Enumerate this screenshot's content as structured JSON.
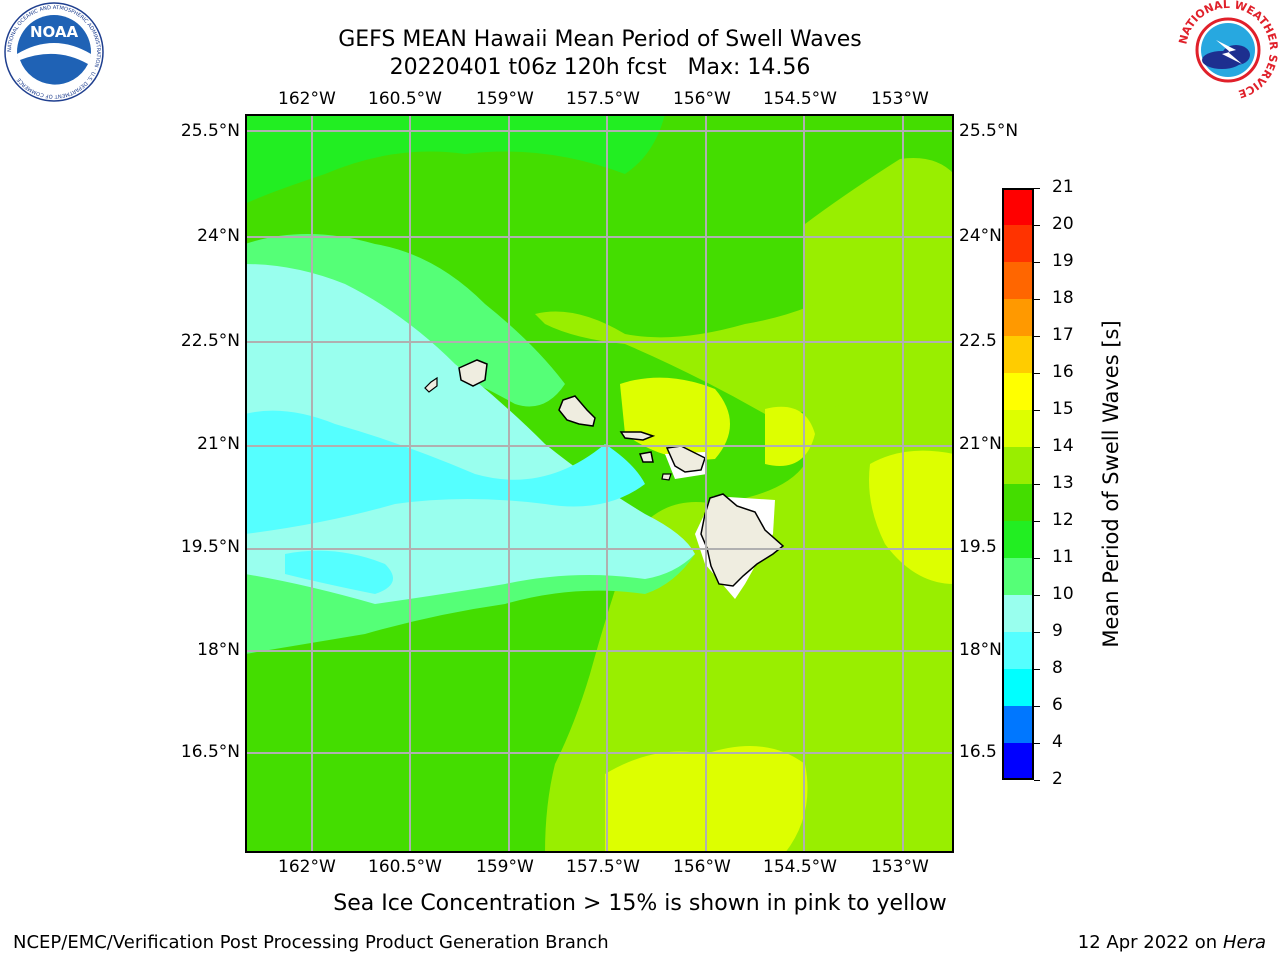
{
  "header": {
    "title_line1": "GEFS MEAN Hawaii Mean Period of Swell Waves",
    "title_line2": "20220401 t06z 120h fcst   Max: 14.56"
  },
  "logos": {
    "left_text": "NOAA",
    "left_ring_text": "NATIONAL OCEANIC AND ATMOSPHERIC ADMINISTRATION · U.S. DEPARTMENT OF COMMERCE",
    "right_ring_text": "NATIONAL WEATHER SERVICE"
  },
  "map": {
    "lon_labels": [
      "162°W",
      "160.5°W",
      "159°W",
      "157.5°W",
      "156°W",
      "154.5°W",
      "153°W"
    ],
    "lat_labels_left": [
      "25.5°N",
      "24°N",
      "22.5°N",
      "21°N",
      "19.5°N",
      "18°N",
      "16.5°N"
    ],
    "lat_labels_right": [
      "25.5°N",
      "24°N",
      "22.5",
      "21°N",
      "19.5",
      "18°N",
      "16.5"
    ]
  },
  "colorbar": {
    "label": "Mean Period of Swell Waves [s]",
    "ticks": [
      "21",
      "20",
      "19",
      "18",
      "17",
      "16",
      "15",
      "14",
      "13",
      "12",
      "11",
      "10",
      "9",
      "8",
      "6",
      "4",
      "2"
    ],
    "colors": [
      "#ff0000",
      "#ff3300",
      "#ff6600",
      "#ff9900",
      "#ffcc00",
      "#ffff00",
      "#ddff00",
      "#99ee00",
      "#44dd00",
      "#22ee22",
      "#55ff77",
      "#99ffee",
      "#55ffff",
      "#00ffff",
      "#0077ff",
      "#0000ff"
    ]
  },
  "map_colors": {
    "land": "#efede0",
    "white_mask": "#ffffff",
    "grid": "#b0b0b0"
  },
  "footer": {
    "note": "Sea Ice Concentration > 15% is shown in pink to yellow",
    "left": "NCEP/EMC/Verification Post Processing Product Generation Branch",
    "right_date": "12 Apr 2022 on ",
    "right_host": "Hera"
  }
}
